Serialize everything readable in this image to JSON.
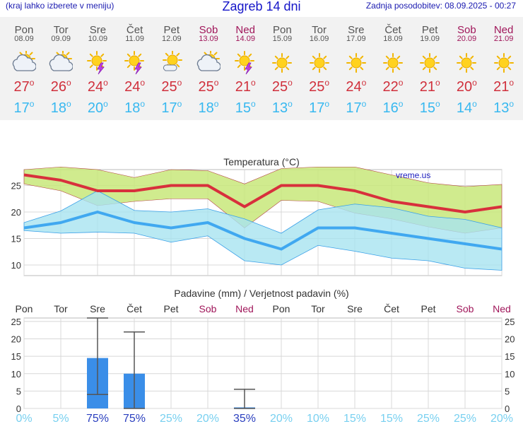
{
  "header": {
    "left": "(kraj lahko izberete v meniju)",
    "title": "Zagreb 14 dni",
    "updated": "Zadnja posodobitev: 08.09.2025 - 00:27"
  },
  "days": [
    {
      "name": "Pon",
      "date": "08.09",
      "weekend": false,
      "icon": "partly-cloudy-icon",
      "tmax": "27",
      "tmin": "17",
      "precip_prob": "0%"
    },
    {
      "name": "Tor",
      "date": "09.09",
      "weekend": false,
      "icon": "partly-cloudy-icon",
      "tmax": "26",
      "tmin": "18",
      "precip_prob": "5%"
    },
    {
      "name": "Sre",
      "date": "10.09",
      "weekend": false,
      "icon": "sun-thunderstorm-icon",
      "tmax": "24",
      "tmin": "20",
      "precip_prob": "75%"
    },
    {
      "name": "Čet",
      "date": "11.09",
      "weekend": false,
      "icon": "sun-thunderstorm-icon",
      "tmax": "24",
      "tmin": "18",
      "precip_prob": "75%"
    },
    {
      "name": "Pet",
      "date": "12.09",
      "weekend": false,
      "icon": "sun-cloud-icon",
      "tmax": "25",
      "tmin": "17",
      "precip_prob": "25%"
    },
    {
      "name": "Sob",
      "date": "13.09",
      "weekend": true,
      "icon": "partly-cloudy-icon",
      "tmax": "25",
      "tmin": "18",
      "precip_prob": "20%"
    },
    {
      "name": "Ned",
      "date": "14.09",
      "weekend": true,
      "icon": "sun-thunderstorm-icon",
      "tmax": "21",
      "tmin": "15",
      "precip_prob": "35%"
    },
    {
      "name": "Pon",
      "date": "15.09",
      "weekend": false,
      "icon": "sun-icon",
      "tmax": "25",
      "tmin": "13",
      "precip_prob": "20%"
    },
    {
      "name": "Tor",
      "date": "16.09",
      "weekend": false,
      "icon": "sun-icon",
      "tmax": "25",
      "tmin": "17",
      "precip_prob": "10%"
    },
    {
      "name": "Sre",
      "date": "17.09",
      "weekend": false,
      "icon": "sun-icon",
      "tmax": "24",
      "tmin": "17",
      "precip_prob": "15%"
    },
    {
      "name": "Čet",
      "date": "18.09",
      "weekend": false,
      "icon": "sun-icon",
      "tmax": "22",
      "tmin": "16",
      "precip_prob": "15%"
    },
    {
      "name": "Pet",
      "date": "19.09",
      "weekend": false,
      "icon": "sun-icon",
      "tmax": "21",
      "tmin": "15",
      "precip_prob": "25%"
    },
    {
      "name": "Sob",
      "date": "20.09",
      "weekend": true,
      "icon": "sun-icon",
      "tmax": "20",
      "tmin": "14",
      "precip_prob": "25%"
    },
    {
      "name": "Ned",
      "date": "21.09",
      "weekend": true,
      "icon": "sun-icon",
      "tmax": "21",
      "tmin": "13",
      "precip_prob": "20%"
    }
  ],
  "chart_data": [
    {
      "type": "line",
      "title": "Temperatura (°C)",
      "watermark": "vreme.us",
      "categories": [
        "08.09",
        "09.09",
        "10.09",
        "11.09",
        "12.09",
        "13.09",
        "14.09",
        "15.09",
        "16.09",
        "17.09",
        "18.09",
        "19.09",
        "20.09",
        "21.09"
      ],
      "ylim": [
        8,
        28
      ],
      "yticks": [
        10,
        15,
        20,
        25
      ],
      "grid": true,
      "series": [
        {
          "name": "",
          "color": "#d8303c",
          "values": [
            27,
            26,
            24,
            24,
            25,
            25,
            21,
            25,
            25,
            24,
            22,
            21,
            20,
            21
          ]
        },
        {
          "name": "",
          "color": "#40a8f0",
          "values": [
            17,
            18,
            20,
            18,
            17,
            18,
            15,
            13,
            17,
            17,
            16,
            15,
            14,
            13
          ]
        }
      ],
      "bands": [
        {
          "name": "",
          "color": "#c8e87a",
          "upper": [
            28,
            28.5,
            28,
            26.5,
            28,
            27.8,
            25.3,
            28.2,
            28.5,
            28.5,
            27,
            25.5,
            24.8,
            25.2
          ],
          "lower": [
            25.3,
            24,
            21.2,
            22,
            22.5,
            22.5,
            17,
            22.2,
            22,
            19.8,
            18.7,
            17.2,
            16,
            17
          ]
        },
        {
          "name": "",
          "color": "#a8e4f0",
          "upper": [
            18,
            20.2,
            24,
            20.3,
            20,
            20.6,
            18.7,
            16,
            20.4,
            21.5,
            20.8,
            19.2,
            18.6,
            17
          ],
          "lower": [
            16.5,
            16,
            16.2,
            16,
            14.3,
            15.5,
            10.8,
            10,
            13.7,
            12.6,
            11.3,
            10.8,
            9.4,
            9
          ]
        }
      ]
    },
    {
      "type": "bar",
      "title": "Padavine (mm) / Verjetnost padavin (%)",
      "categories": [
        "Pon",
        "Tor",
        "Sre",
        "Čet",
        "Pet",
        "Sob",
        "Ned",
        "Pon",
        "Tor",
        "Sre",
        "Čet",
        "Pet",
        "Sob",
        "Ned"
      ],
      "ylim": [
        0,
        26
      ],
      "yticks": [
        0,
        5,
        10,
        15,
        20,
        25
      ],
      "values": [
        0,
        0,
        14.5,
        10,
        0,
        0,
        0.2,
        0,
        0,
        0,
        0,
        0,
        0,
        0
      ],
      "error_low": [
        0,
        0,
        4,
        0,
        0,
        0,
        0,
        0,
        0,
        0,
        0,
        0,
        0,
        0
      ],
      "error_high": [
        0,
        0,
        26,
        22,
        0,
        0,
        5.5,
        0,
        0,
        0,
        0,
        0,
        0,
        0
      ],
      "probabilities": [
        "0%",
        "5%",
        "75%",
        "75%",
        "25%",
        "20%",
        "35%",
        "20%",
        "10%",
        "15%",
        "15%",
        "25%",
        "25%",
        "20%"
      ],
      "bar_color": "#3a8ee8"
    }
  ]
}
